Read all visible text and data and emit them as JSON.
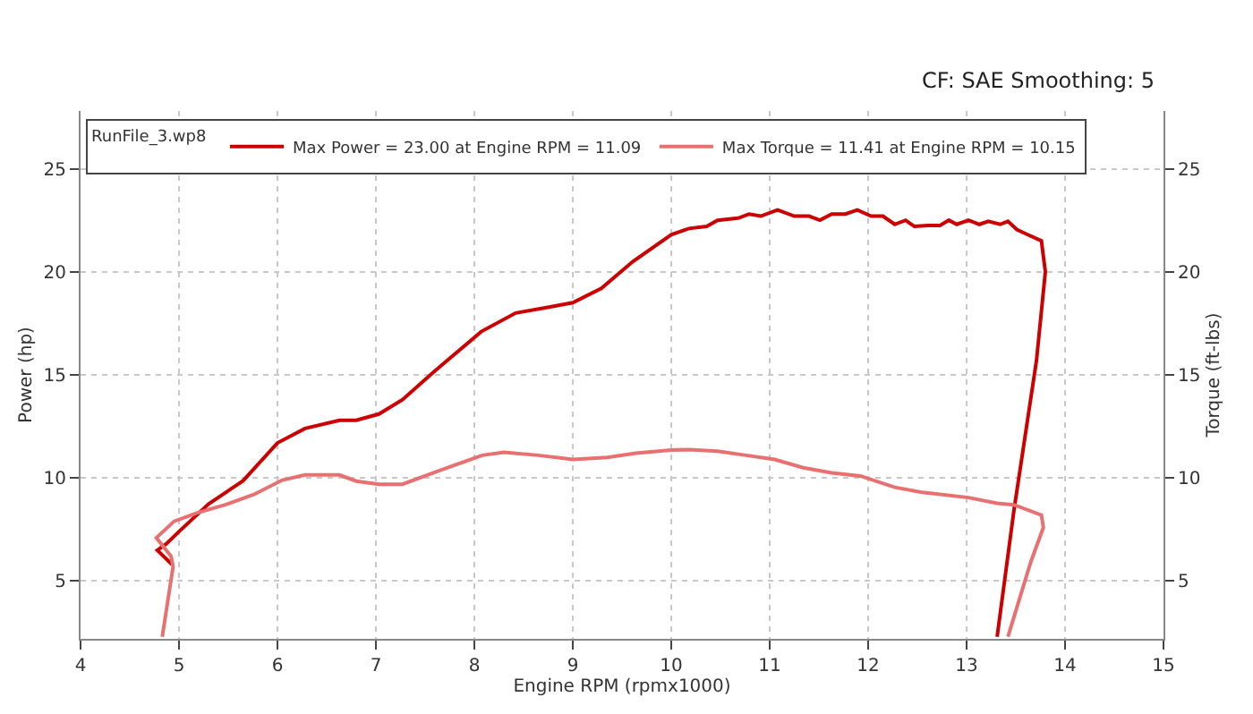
{
  "chart_data": {
    "type": "line",
    "annotations": [
      "CF: SAE Smoothing: 5"
    ],
    "xlabel": "Engine RPM (rpmx1000)",
    "ylabel": "Power (hp)",
    "y2label": "Torque (ft-lbs)",
    "legend_title": "RunFile_3.wp8",
    "legend": "top left",
    "grid": true,
    "line_style": "solid",
    "marker": "none",
    "xlim": [
      4,
      15
    ],
    "xticks": [
      4,
      5,
      6,
      7,
      8,
      9,
      10,
      11,
      12,
      13,
      14,
      15
    ],
    "ylim": [
      2.2,
      27.8
    ],
    "yticks": [
      5,
      10,
      15,
      20,
      25
    ],
    "y2lim": [
      2.2,
      27.8
    ],
    "y2ticks": [
      5,
      10,
      15,
      20,
      25
    ],
    "series": [
      {
        "name": "Max Power = 23.00 at Engine RPM = 11.09",
        "color": "#cc0000",
        "x": [
          4.93,
          4.78,
          4.87,
          5.0,
          5.3,
          5.65,
          6.0,
          6.28,
          6.63,
          6.8,
          7.03,
          7.27,
          7.6,
          8.07,
          8.42,
          8.77,
          9.0,
          9.29,
          9.61,
          10.0,
          10.18,
          10.36,
          10.47,
          10.68,
          10.79,
          10.91,
          11.08,
          11.25,
          11.4,
          11.51,
          11.63,
          11.77,
          11.89,
          12.03,
          12.15,
          12.27,
          12.38,
          12.47,
          12.61,
          12.73,
          12.82,
          12.9,
          13.02,
          13.13,
          13.22,
          13.34,
          13.42,
          13.51,
          13.62,
          13.76,
          13.8,
          13.71,
          13.48,
          13.31
        ],
        "values": [
          5.8,
          6.5,
          6.8,
          7.4,
          8.74,
          9.86,
          11.7,
          12.4,
          12.8,
          12.8,
          13.1,
          13.8,
          15.2,
          17.1,
          18.0,
          18.3,
          18.5,
          19.2,
          20.5,
          21.8,
          22.1,
          22.2,
          22.5,
          22.6,
          22.8,
          22.7,
          23.0,
          22.7,
          22.7,
          22.5,
          22.8,
          22.8,
          23.0,
          22.7,
          22.7,
          22.3,
          22.5,
          22.2,
          22.25,
          22.25,
          22.5,
          22.3,
          22.5,
          22.3,
          22.45,
          22.3,
          22.45,
          22.05,
          21.8,
          21.5,
          20.0,
          15.7,
          8.4,
          2.3
        ]
      },
      {
        "name": "Max Torque = 11.41 at Engine RPM = 10.15",
        "color": "#e87070",
        "x": [
          4.83,
          4.94,
          4.92,
          4.77,
          4.95,
          5.18,
          5.47,
          5.76,
          6.05,
          6.28,
          6.63,
          6.8,
          7.03,
          7.27,
          7.61,
          8.08,
          8.3,
          8.65,
          9.0,
          9.35,
          9.64,
          10.0,
          10.18,
          10.47,
          10.76,
          11.05,
          11.34,
          11.63,
          11.92,
          12.27,
          12.55,
          13.02,
          13.31,
          13.48,
          13.76,
          13.78,
          13.65,
          13.42
        ],
        "values": [
          2.3,
          5.7,
          6.2,
          7.1,
          7.9,
          8.3,
          8.7,
          9.2,
          9.9,
          10.15,
          10.15,
          9.85,
          9.7,
          9.7,
          10.3,
          11.1,
          11.25,
          11.1,
          10.9,
          11.0,
          11.2,
          11.35,
          11.38,
          11.3,
          11.1,
          10.9,
          10.5,
          10.25,
          10.1,
          9.55,
          9.3,
          9.05,
          8.77,
          8.7,
          8.2,
          7.6,
          5.9,
          2.3
        ]
      }
    ]
  }
}
